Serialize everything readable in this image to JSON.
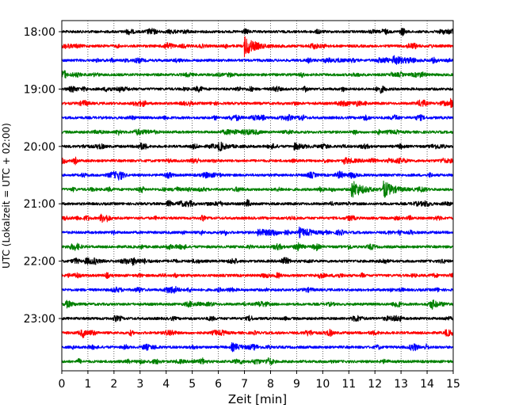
{
  "chart_data": {
    "type": "line",
    "xlabel": "Zeit  [min]",
    "ylabel": "UTC (Lokalzeit = UTC + 02:00)",
    "xlim": [
      0,
      15
    ],
    "x_ticks": [
      "0",
      "1",
      "2",
      "3",
      "4",
      "5",
      "6",
      "7",
      "8",
      "9",
      "10",
      "11",
      "12",
      "13",
      "14",
      "15"
    ],
    "y_tick_labels": [
      "18:00",
      "19:00",
      "20:00",
      "21:00",
      "22:00",
      "23:00"
    ],
    "trace_start_times": [
      "18:00",
      "18:15",
      "18:30",
      "18:45",
      "19:00",
      "19:15",
      "19:30",
      "19:45",
      "20:00",
      "20:15",
      "20:30",
      "20:45",
      "21:00",
      "21:15",
      "21:30",
      "21:45",
      "22:00",
      "22:15",
      "22:30",
      "22:45",
      "23:00",
      "23:15",
      "23:30",
      "23:45"
    ],
    "trace_colors": [
      "#000000",
      "#ff0000",
      "#0000ff",
      "#008000"
    ],
    "trace_amplitude": 0.18,
    "events": [
      {
        "trace": "18:15",
        "minute": 7.0,
        "amplitude": 1.4
      },
      {
        "trace": "18:30",
        "minute": 12.7,
        "amplitude": 0.7
      },
      {
        "trace": "19:15",
        "minute": 14.9,
        "amplitude": 0.5
      },
      {
        "trace": "20:00",
        "minute": 6.0,
        "amplitude": 0.4
      },
      {
        "trace": "20:00",
        "minute": 8.9,
        "amplitude": 0.4
      },
      {
        "trace": "20:15",
        "minute": 10.8,
        "amplitude": 0.4
      },
      {
        "trace": "20:45",
        "minute": 11.1,
        "amplitude": 1.3
      },
      {
        "trace": "20:45",
        "minute": 12.3,
        "amplitude": 1.2
      },
      {
        "trace": "21:30",
        "minute": 7.5,
        "amplitude": 0.5
      },
      {
        "trace": "21:30",
        "minute": 9.1,
        "amplitude": 0.6
      },
      {
        "trace": "22:00",
        "minute": 0.9,
        "amplitude": 0.4
      },
      {
        "trace": "22:00",
        "minute": 2.7,
        "amplitude": 0.4
      },
      {
        "trace": "22:45",
        "minute": 14.2,
        "amplitude": 0.4
      },
      {
        "trace": "23:15",
        "minute": 14.7,
        "amplitude": 0.4
      },
      {
        "trace": "23:30",
        "minute": 6.5,
        "amplitude": 0.5
      }
    ],
    "grid": {
      "x": true,
      "y": false,
      "style": "dotted"
    },
    "legend": "none"
  }
}
